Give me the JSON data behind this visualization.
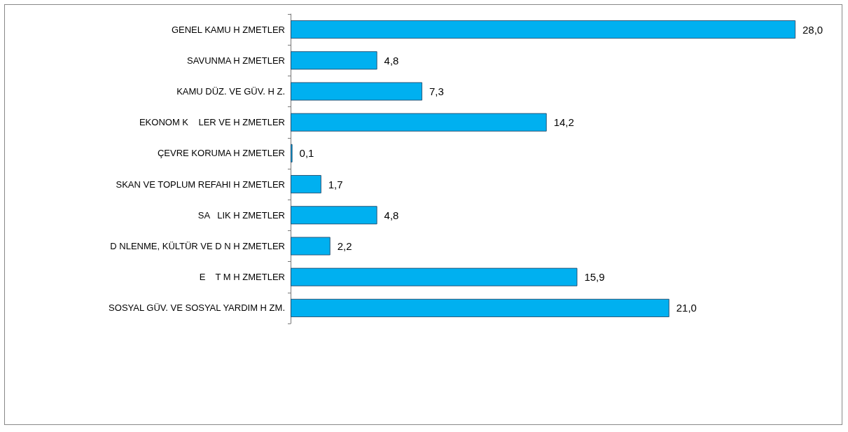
{
  "chart_data": {
    "type": "bar",
    "orientation": "horizontal",
    "categories": [
      "GENEL KAMU H ZMETLER",
      "SAVUNMA H ZMETLER",
      "KAMU DÜZ. VE GÜV. H Z.",
      "EKONOM K    LER VE H ZMETLER",
      "ÇEVRE KORUMA H ZMETLER",
      "SKAN VE TOPLUM REFAHI H ZMETLER",
      "SA   LIK H ZMETLER",
      "D NLENME, KÜLTÜR VE D N H ZMETLER",
      "E    T M H ZMETLER",
      "SOSYAL GÜV. VE SOSYAL YARDIM H ZM."
    ],
    "values": [
      28.0,
      4.8,
      7.3,
      14.2,
      0.1,
      1.7,
      4.8,
      2.2,
      15.9,
      21.0
    ],
    "value_labels": [
      "28,0",
      "4,8",
      "7,3",
      "14,2",
      "0,1",
      "1,7",
      "4,8",
      "2,2",
      "15,9",
      "21,0"
    ],
    "color": "#00b0f0",
    "tick_labels": "y"
  }
}
